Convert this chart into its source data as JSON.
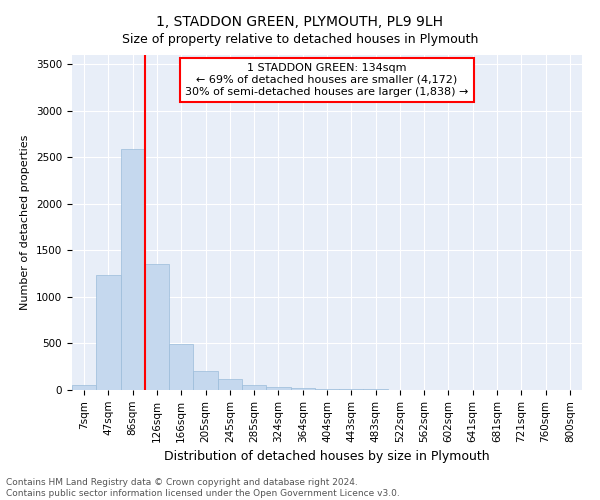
{
  "title": "1, STADDON GREEN, PLYMOUTH, PL9 9LH",
  "subtitle": "Size of property relative to detached houses in Plymouth",
  "xlabel": "Distribution of detached houses by size in Plymouth",
  "ylabel": "Number of detached properties",
  "categories": [
    "7sqm",
    "47sqm",
    "86sqm",
    "126sqm",
    "166sqm",
    "205sqm",
    "245sqm",
    "285sqm",
    "324sqm",
    "364sqm",
    "404sqm",
    "443sqm",
    "483sqm",
    "522sqm",
    "562sqm",
    "602sqm",
    "641sqm",
    "681sqm",
    "721sqm",
    "760sqm",
    "800sqm"
  ],
  "values": [
    55,
    1240,
    2590,
    1350,
    490,
    200,
    120,
    55,
    30,
    20,
    15,
    10,
    10,
    5,
    3,
    2,
    2,
    2,
    1,
    1,
    1
  ],
  "bar_color": "#c5d8ee",
  "bar_edge_color": "#9bbcda",
  "vline_color": "red",
  "vline_pos": 2.5,
  "annotation_line1": "1 STADDON GREEN: 134sqm",
  "annotation_line2": "← 69% of detached houses are smaller (4,172)",
  "annotation_line3": "30% of semi-detached houses are larger (1,838) →",
  "annotation_box_facecolor": "white",
  "annotation_box_edgecolor": "red",
  "ylim": [
    0,
    3600
  ],
  "yticks": [
    0,
    500,
    1000,
    1500,
    2000,
    2500,
    3000,
    3500
  ],
  "background_color": "#e8eef8",
  "grid_color": "white",
  "footer_line1": "Contains HM Land Registry data © Crown copyright and database right 2024.",
  "footer_line2": "Contains public sector information licensed under the Open Government Licence v3.0.",
  "title_fontsize": 10,
  "subtitle_fontsize": 9,
  "ylabel_fontsize": 8,
  "xlabel_fontsize": 9,
  "tick_fontsize": 7.5,
  "footer_fontsize": 6.5
}
